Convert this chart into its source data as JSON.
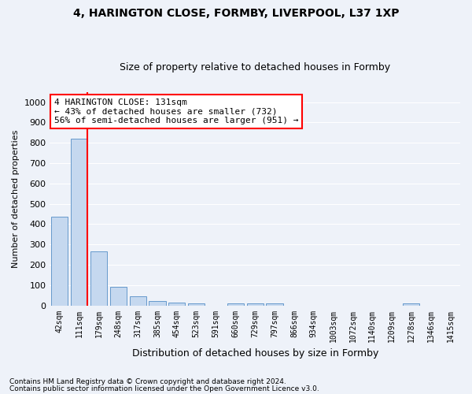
{
  "title1": "4, HARINGTON CLOSE, FORMBY, LIVERPOOL, L37 1XP",
  "title2": "Size of property relative to detached houses in Formby",
  "xlabel": "Distribution of detached houses by size in Formby",
  "ylabel": "Number of detached properties",
  "categories": [
    "42sqm",
    "111sqm",
    "179sqm",
    "248sqm",
    "317sqm",
    "385sqm",
    "454sqm",
    "523sqm",
    "591sqm",
    "660sqm",
    "729sqm",
    "797sqm",
    "866sqm",
    "934sqm",
    "1003sqm",
    "1072sqm",
    "1140sqm",
    "1209sqm",
    "1278sqm",
    "1346sqm",
    "1415sqm"
  ],
  "bar_values": [
    435,
    820,
    267,
    93,
    45,
    22,
    16,
    12,
    0,
    11,
    12,
    11,
    0,
    0,
    0,
    0,
    0,
    0,
    9,
    0,
    0
  ],
  "bar_color": "#c5d8ef",
  "bar_edge_color": "#6699cc",
  "vline_x_idx": 1,
  "vline_color": "red",
  "annotation_title": "4 HARINGTON CLOSE: 131sqm",
  "annotation_line1": "← 43% of detached houses are smaller (732)",
  "annotation_line2": "56% of semi-detached houses are larger (951) →",
  "annotation_box_color": "white",
  "annotation_box_edge": "red",
  "ylim": [
    0,
    1050
  ],
  "yticks": [
    0,
    100,
    200,
    300,
    400,
    500,
    600,
    700,
    800,
    900,
    1000
  ],
  "footnote1": "Contains HM Land Registry data © Crown copyright and database right 2024.",
  "footnote2": "Contains public sector information licensed under the Open Government Licence v3.0.",
  "bg_color": "#eef2f9",
  "title1_fontsize": 10,
  "title2_fontsize": 9,
  "xlabel_fontsize": 9,
  "ylabel_fontsize": 8,
  "tick_fontsize": 8,
  "xtick_fontsize": 7,
  "annot_fontsize": 8,
  "footnote_fontsize": 6.5
}
